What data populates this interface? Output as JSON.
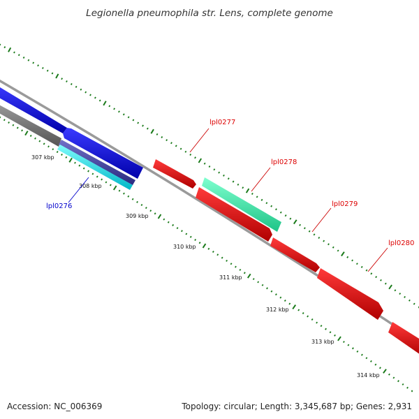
{
  "title": "Legionella pneumophila str. Lens, complete genome",
  "footer": {
    "accession": "Accession: NC_006369",
    "summary": "Topology: circular; Length: 3,345,687 bp; Genes: 2,931"
  },
  "ticks": [
    "307 kbp",
    "308 kbp",
    "309 kbp",
    "310 kbp",
    "311 kbp",
    "312 kbp",
    "313 kbp",
    "314 kbp"
  ],
  "genes": [
    {
      "name": "lpl0276",
      "color": "#0000cc"
    },
    {
      "name": "lpl0277",
      "color": "#dd0000"
    },
    {
      "name": "lpl0278",
      "color": "#dd0000"
    },
    {
      "name": "lpl0279",
      "color": "#dd0000"
    },
    {
      "name": "lpl0280",
      "color": "#dd0000"
    }
  ],
  "colors": {
    "backbone": "#8a8a8a",
    "tick": "#1a7a1a",
    "blue_feature": "#0000ee",
    "cyan_feature": "#00e8e8",
    "green_feature": "#33e8a0",
    "red_feature": "#ee0000",
    "gray_feature": "#6a6a6a"
  }
}
